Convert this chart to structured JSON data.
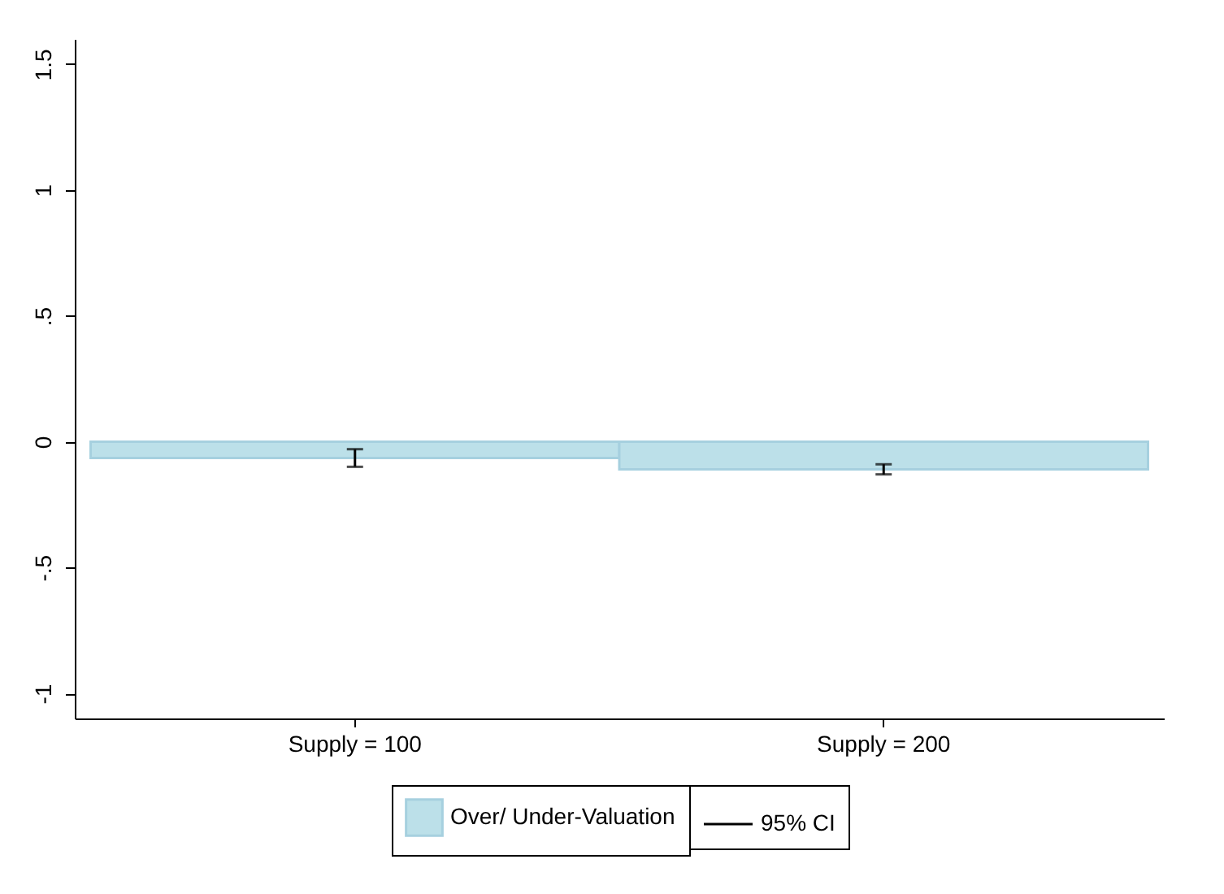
{
  "chart_data": {
    "type": "bar",
    "categories": [
      "Supply = 100",
      "Supply = 200"
    ],
    "series": [
      {
        "name": "Over/ Under-Valuation",
        "color": "#bce0e9",
        "values": [
          -0.065,
          -0.11
        ],
        "errors": [
          [
            -0.1,
            -0.03
          ],
          [
            -0.13,
            -0.09
          ]
        ]
      }
    ],
    "annotations": [
      "95% CI"
    ],
    "ylim": [
      -1.1,
      1.6
    ],
    "yticks": [
      -1,
      {
        "value": -0.5,
        "label": "-.5"
      },
      0,
      {
        "value": 0.5,
        "label": ".5"
      },
      1,
      1.5
    ],
    "grid": false,
    "legend": "bottom"
  }
}
